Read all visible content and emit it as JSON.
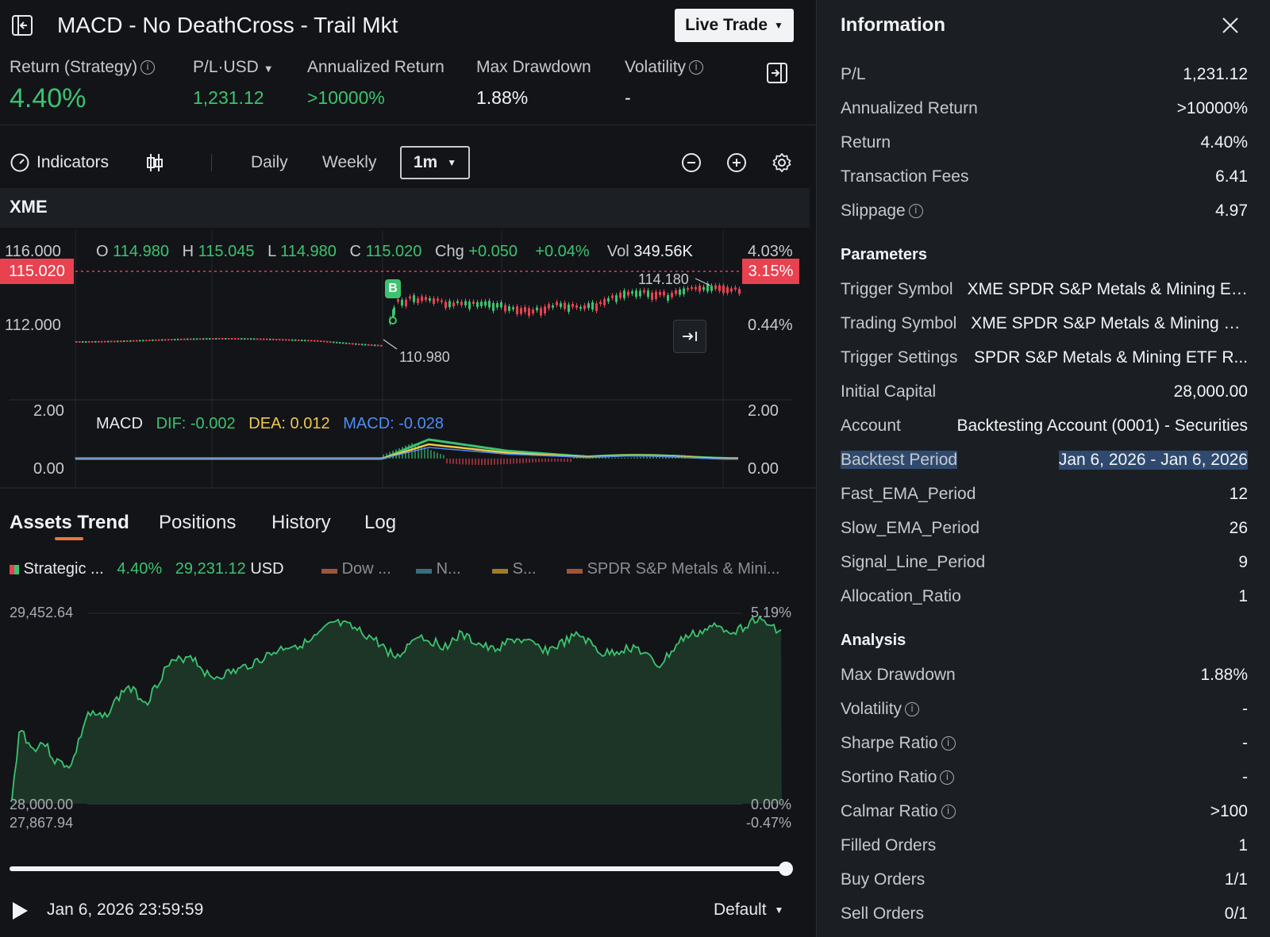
{
  "header": {
    "title": "MACD - No DeathCross - Trail Mkt",
    "live_trade_label": "Live Trade"
  },
  "metrics": {
    "return_label": "Return (Strategy)",
    "return_value": "4.40%",
    "pl_label": "P/L·USD",
    "pl_value": "1,231.12",
    "annualized_label": "Annualized Return",
    "annualized_value": ">10000%",
    "drawdown_label": "Max Drawdown",
    "drawdown_value": "1.88%",
    "volatility_label": "Volatility",
    "volatility_value": "-"
  },
  "toolbar": {
    "indicators_label": "Indicators",
    "daily_label": "Daily",
    "weekly_label": "Weekly",
    "interval_value": "1m"
  },
  "symbol": "XME",
  "ohlc": {
    "o_label": "O",
    "o_value": "114.980",
    "h_label": "H",
    "h_value": "115.045",
    "l_label": "L",
    "l_value": "114.980",
    "c_label": "C",
    "c_value": "115.020",
    "chg_label": "Chg",
    "chg_value": "+0.050",
    "chg_pct": "+0.04%",
    "vol_label": "Vol",
    "vol_value": "349.56K"
  },
  "price_chart": {
    "y_left": [
      "116.000",
      "112.000"
    ],
    "y_right": [
      "4.03%",
      "0.44%"
    ],
    "current_price": "115.020",
    "current_pct": "3.15%",
    "high_marker": "114.180",
    "low_marker": "110.980",
    "buy_marker": "B"
  },
  "macd": {
    "label": "MACD",
    "dif": "DIF: -0.002",
    "dea": "DEA: 0.012",
    "macd": "MACD: -0.028",
    "y_left": [
      "2.00",
      "0.00"
    ],
    "y_right": [
      "2.00",
      "0.00"
    ]
  },
  "tabs": [
    "Assets Trend",
    "Positions",
    "History",
    "Log"
  ],
  "assets_legend": {
    "strategic_label": "Strategic ...",
    "strategic_pct": "4.40%",
    "strategic_value": "29,231.12",
    "strategic_unit": "USD",
    "dow": "Dow ...",
    "n": "N...",
    "s": "S...",
    "spdr": "SPDR S&P Metals & Mini..."
  },
  "assets_chart": {
    "y_left_top": "29,452.64",
    "y_left_base": "28,000.00",
    "y_left_bottom": "27,867.94",
    "y_right_top": "5.19%",
    "y_right_base": "0.00%",
    "y_right_bottom": "-0.47%"
  },
  "playback": {
    "timestamp": "Jan 6, 2026 23:59:59",
    "speed": "Default",
    "progress": 1.0
  },
  "info": {
    "title": "Information",
    "summary": [
      {
        "label": "P/L",
        "value": "1,231.12"
      },
      {
        "label": "Annualized Return",
        "value": ">10000%"
      },
      {
        "label": "Return",
        "value": "4.40%"
      },
      {
        "label": "Transaction Fees",
        "value": "6.41"
      },
      {
        "label": "Slippage",
        "value": "4.97"
      }
    ],
    "parameters_title": "Parameters",
    "parameters": [
      {
        "label": "Trigger Symbol",
        "value": "XME SPDR S&P Metals & Mining ETF"
      },
      {
        "label": "Trading Symbol",
        "value": "XME SPDR S&P Metals & Mining E..."
      },
      {
        "label": "Trigger Settings",
        "value": "SPDR S&P Metals & Mining ETF R..."
      },
      {
        "label": "Initial Capital",
        "value": "28,000.00"
      },
      {
        "label": "Account",
        "value": "Backtesting Account (0001) - Securities"
      },
      {
        "label": "Backtest Period",
        "value": "Jan 6, 2026 - Jan 6, 2026"
      },
      {
        "label": "Fast_EMA_Period",
        "value": "12"
      },
      {
        "label": "Slow_EMA_Period",
        "value": "26"
      },
      {
        "label": "Signal_Line_Period",
        "value": "9"
      },
      {
        "label": "Allocation_Ratio",
        "value": "1"
      }
    ],
    "analysis_title": "Analysis",
    "analysis": [
      {
        "label": "Max Drawdown",
        "value": "1.88%"
      },
      {
        "label": "Volatility",
        "value": "-"
      },
      {
        "label": "Sharpe Ratio",
        "value": "-"
      },
      {
        "label": "Sortino Ratio",
        "value": "-"
      },
      {
        "label": "Calmar Ratio",
        "value": ">100"
      },
      {
        "label": "Filled Orders",
        "value": "1"
      },
      {
        "label": "Buy Orders",
        "value": "1/1"
      },
      {
        "label": "Sell Orders",
        "value": "0/1"
      }
    ]
  },
  "colors": {
    "green": "#3cc36f",
    "red": "#e8414f",
    "yellow": "#f0c84b",
    "blue": "#4f8cf5",
    "accent": "#e8763a"
  }
}
